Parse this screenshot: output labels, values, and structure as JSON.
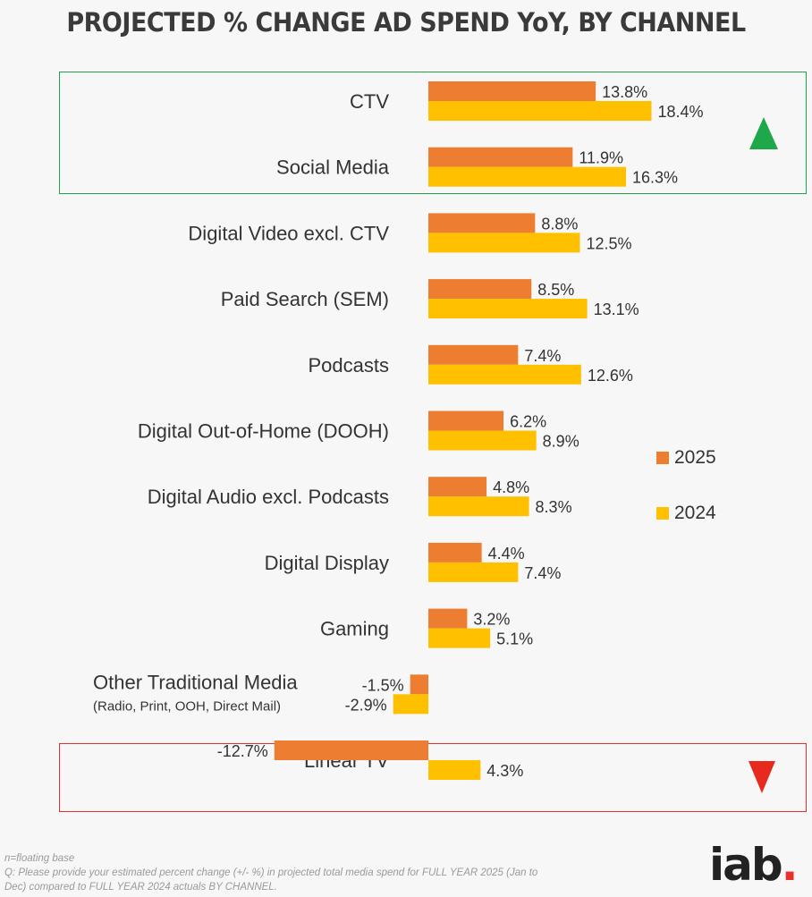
{
  "chart_data": {
    "type": "bar",
    "orientation": "horizontal",
    "title": "PROJECTED % CHANGE AD SPEND YoY, BY CHANNEL",
    "categories": [
      "CTV",
      "Social Media",
      "Digital Video excl. CTV",
      "Paid Search (SEM)",
      "Podcasts",
      "Digital Out-of-Home (DOOH)",
      "Digital Audio excl. Podcasts",
      "Digital Display",
      "Gaming",
      "Other Traditional Media",
      "Linear TV"
    ],
    "category_sublabels": [
      "",
      "",
      "",
      "",
      "",
      "",
      "",
      "",
      "",
      "(Radio, Print, OOH, Direct Mail)",
      ""
    ],
    "series": [
      {
        "name": "2025",
        "color": "#ed7d31",
        "values": [
          13.8,
          11.9,
          8.8,
          8.5,
          7.4,
          6.2,
          4.8,
          4.4,
          3.2,
          -1.5,
          -12.7
        ],
        "labels": [
          "13.8%",
          "11.9%",
          "8.8%",
          "8.5%",
          "7.4%",
          "6.2%",
          "4.8%",
          "4.4%",
          "3.2%",
          "-1.5%",
          "-12.7%"
        ]
      },
      {
        "name": "2024",
        "color": "#ffc000",
        "values": [
          18.4,
          16.3,
          12.5,
          13.1,
          12.6,
          8.9,
          8.3,
          7.4,
          5.1,
          -2.9,
          4.3
        ],
        "labels": [
          "18.4%",
          "16.3%",
          "12.5%",
          "13.1%",
          "12.6%",
          "8.9%",
          "8.3%",
          "7.4%",
          "5.1%",
          "-2.9%",
          "4.3%"
        ]
      }
    ],
    "legend": "right"
  },
  "footnote": {
    "line1": "n=floating base",
    "line2": "Q: Please provide your estimated percent change (+/- %) in projected total media spend for FULL YEAR 2025 (Jan to Dec) compared to FULL YEAR 2024 actuals BY CHANNEL."
  },
  "logo": {
    "text": "iab",
    "dot": "."
  },
  "icons": {
    "up": "up-triangle-icon",
    "down": "down-triangle-icon"
  }
}
